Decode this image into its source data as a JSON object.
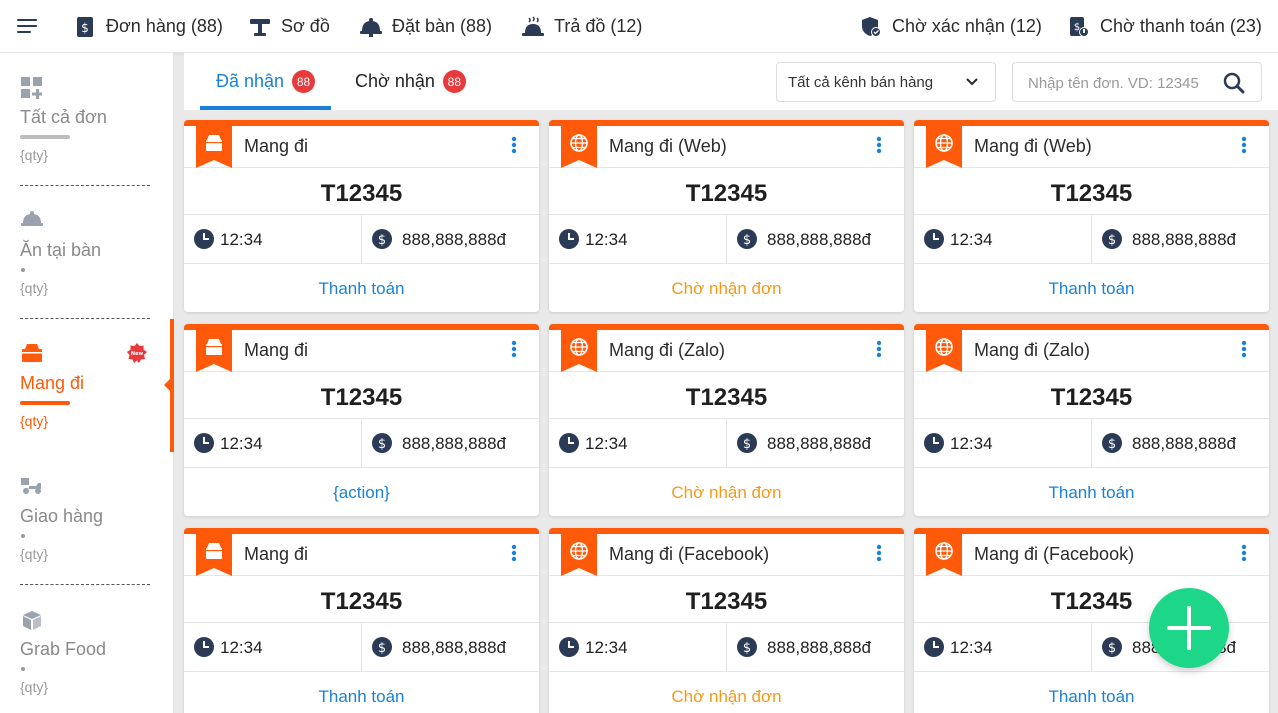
{
  "topbar": {
    "items": [
      {
        "label": "Đơn hàng (88)",
        "icon": "order-doc-icon"
      },
      {
        "label": "Sơ đồ",
        "icon": "table-map-icon"
      },
      {
        "label": "Đặt bàn (88)",
        "icon": "cloche-icon"
      },
      {
        "label": "Trả đồ (12)",
        "icon": "serving-hot-icon"
      },
      {
        "label": "Chờ xác nhận (12)",
        "icon": "shield-check-icon"
      },
      {
        "label": "Chờ thanh toán (23)",
        "icon": "payment-doc-icon"
      }
    ]
  },
  "sidebar": {
    "items": [
      {
        "label": "Tất cả đơn",
        "qty": "{qty}",
        "icon": "grid-plus-icon"
      },
      {
        "label": "Ăn tại bàn",
        "qty": "{qty}",
        "icon": "cloche-icon"
      },
      {
        "label": "Mang đi",
        "qty": "{qty}",
        "icon": "takeaway-box-icon",
        "badge": "New"
      },
      {
        "label": "Giao hàng",
        "qty": "{qty}",
        "icon": "delivery-scooter-icon"
      },
      {
        "label": "Grab Food",
        "qty": "{qty}",
        "icon": "food-box-icon"
      }
    ]
  },
  "tabs": {
    "items": [
      {
        "label": "Đã nhận",
        "badge": "88"
      },
      {
        "label": "Chờ nhận",
        "badge": "88"
      }
    ],
    "channel_select": "Tất cả kênh bán hàng",
    "search_placeholder": "Nhập tên đơn. VD: 12345"
  },
  "colors": {
    "accent": "#ff5a0a",
    "primary": "#1a82d6",
    "waiting": "#f39a1a",
    "fab": "#1dd688",
    "badge": "#e8393c"
  },
  "orders": [
    {
      "title": "Mang đi",
      "code": "T12345",
      "time": "12:34",
      "price": "888,888,888đ",
      "action": "Thanh toán",
      "type": "box"
    },
    {
      "title": "Mang đi (Web)",
      "code": "T12345",
      "time": "12:34",
      "price": "888,888,888đ",
      "action": "Chờ nhận đơn",
      "type": "globe"
    },
    {
      "title": "Mang đi (Web)",
      "code": "T12345",
      "time": "12:34",
      "price": "888,888,888đ",
      "action": "Thanh toán",
      "type": "globe"
    },
    {
      "title": "Mang đi",
      "code": "T12345",
      "time": "12:34",
      "price": "888,888,888đ",
      "action": "{action}",
      "type": "box"
    },
    {
      "title": "Mang đi (Zalo)",
      "code": "T12345",
      "time": "12:34",
      "price": "888,888,888đ",
      "action": "Chờ nhận đơn",
      "type": "globe"
    },
    {
      "title": "Mang đi (Zalo)",
      "code": "T12345",
      "time": "12:34",
      "price": "888,888,888đ",
      "action": "Thanh toán",
      "type": "globe"
    },
    {
      "title": "Mang đi",
      "code": "T12345",
      "time": "12:34",
      "price": "888,888,888đ",
      "action": "Thanh toán",
      "type": "box"
    },
    {
      "title": "Mang đi (Facebook)",
      "code": "T12345",
      "time": "12:34",
      "price": "888,888,888đ",
      "action": "Chờ nhận đơn",
      "type": "globe"
    },
    {
      "title": "Mang đi (Facebook)",
      "code": "T12345",
      "time": "12:34",
      "price": "888,888,888đ",
      "action": "Thanh toán",
      "type": "globe"
    }
  ]
}
